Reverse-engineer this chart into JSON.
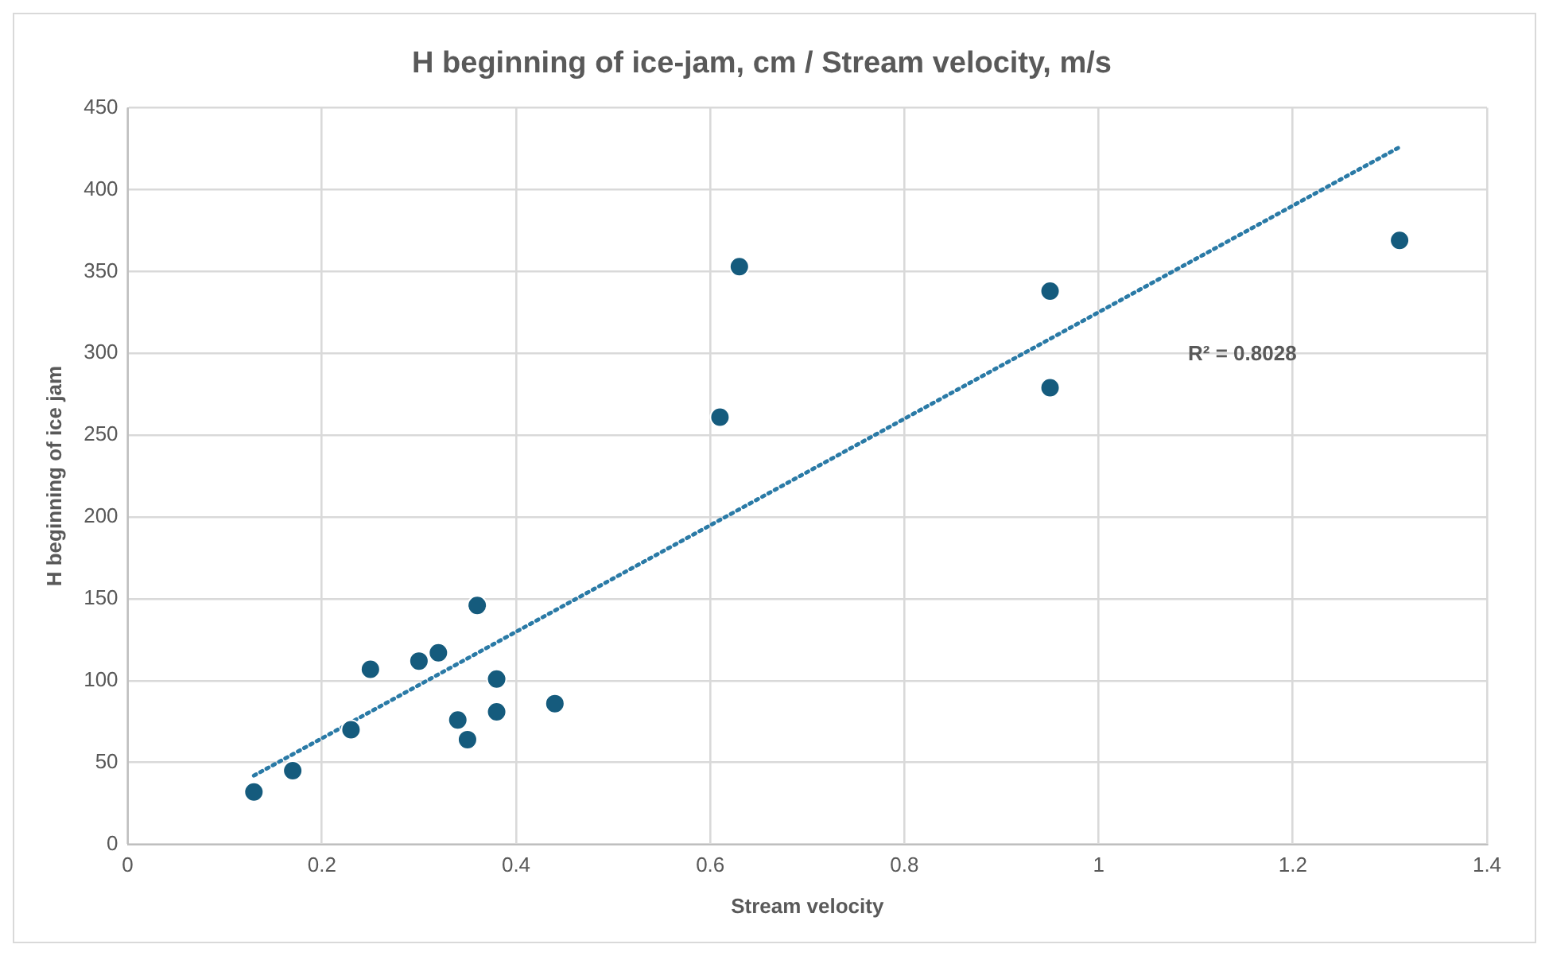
{
  "chart_data": {
    "type": "scatter",
    "title": "H beginning of ice-jam, cm / Stream velocity, m/s",
    "xlabel": "Stream velocity",
    "ylabel": "H beginning of ice jam",
    "xlim": [
      0,
      1.4
    ],
    "xticks": [
      0,
      0.2,
      0.4,
      0.6,
      0.8,
      1,
      1.2,
      1.4
    ],
    "ylim": [
      0,
      450
    ],
    "yticks": [
      0,
      50,
      100,
      150,
      200,
      250,
      300,
      350,
      400,
      450
    ],
    "grid": true,
    "legend": false,
    "marker": "circle",
    "series": [
      {
        "color": "#155b7d",
        "x": [
          0.13,
          0.17,
          0.23,
          0.25,
          0.3,
          0.32,
          0.34,
          0.35,
          0.36,
          0.38,
          0.38,
          0.44,
          0.61,
          0.63,
          0.95,
          0.95,
          1.31
        ],
        "values": [
          32,
          45,
          70,
          107,
          112,
          117,
          76,
          64,
          146,
          101,
          81,
          86,
          261,
          353,
          338,
          279,
          369
        ]
      },
      {
        "type": "line",
        "color": "#2a7aa6",
        "marker": "none",
        "line_style": "dotted",
        "x": [
          0.13,
          1.31
        ],
        "values": [
          42,
          426
        ]
      }
    ],
    "annotations": [
      "R² = 0.8028"
    ]
  }
}
